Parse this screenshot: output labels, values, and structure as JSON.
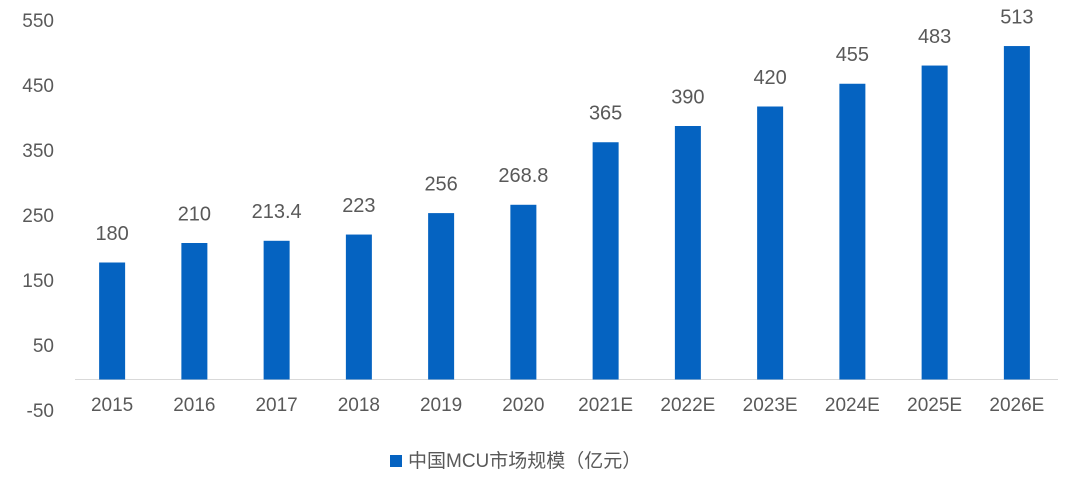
{
  "chart_data": {
    "type": "bar",
    "categories": [
      "2015",
      "2016",
      "2017",
      "2018",
      "2019",
      "2020",
      "2021E",
      "2022E",
      "2023E",
      "2024E",
      "2025E",
      "2026E"
    ],
    "series": [
      {
        "name": "中国MCU市场规模（亿元）",
        "color": "#0563c1",
        "values": [
          180,
          210,
          213.4,
          223,
          256,
          268.8,
          365,
          390,
          420,
          455,
          483,
          513
        ]
      }
    ],
    "ylim": [
      -50,
      550
    ],
    "yticks": [
      -50,
      50,
      150,
      250,
      350,
      450,
      550
    ],
    "grid": false,
    "legend": "bottom"
  }
}
